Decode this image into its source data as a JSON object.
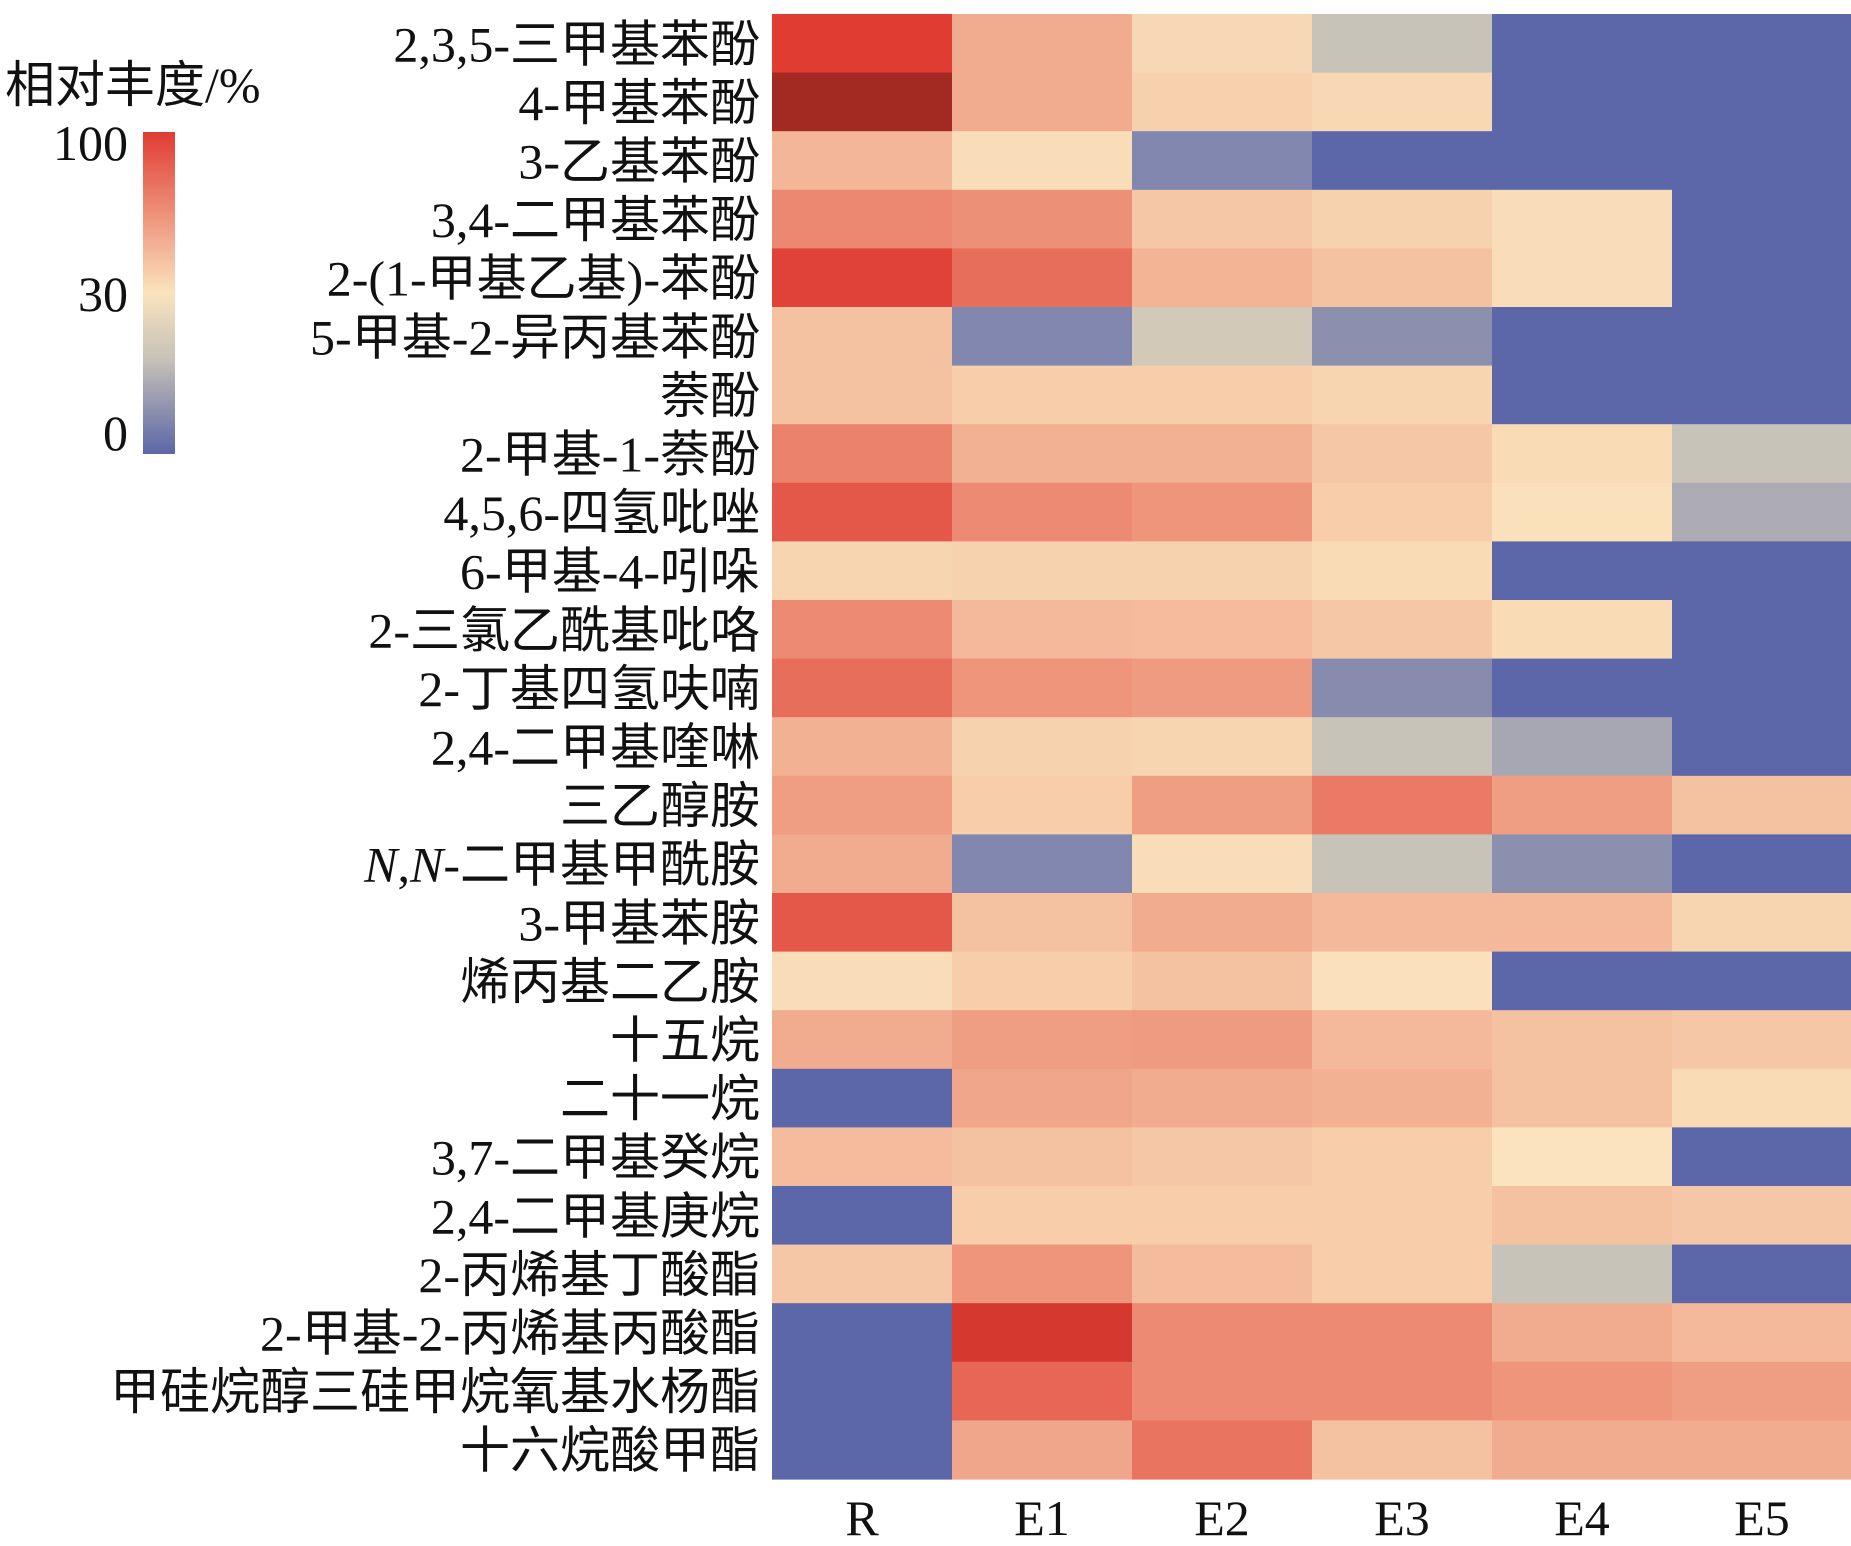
{
  "chart_data": {
    "type": "heatmap",
    "title": "",
    "xlabel": "",
    "ylabel": "",
    "columns": [
      "R",
      "E1",
      "E2",
      "E3",
      "E4",
      "E5"
    ],
    "rows": [
      {
        "label": "2,3,5-三甲基苯酚",
        "values": [
          90,
          50,
          34,
          20,
          0,
          0
        ]
      },
      {
        "label": "4-甲基苯酚",
        "values": [
          100,
          50,
          37,
          34,
          0,
          0
        ]
      },
      {
        "label": "3-乙基苯酚",
        "values": [
          46,
          32,
          7,
          0,
          0,
          0
        ]
      },
      {
        "label": "3,4-二甲基苯酚",
        "values": [
          63,
          60,
          40,
          36,
          32,
          0
        ]
      },
      {
        "label": "2-(1-甲基乙基)-苯酚",
        "values": [
          88,
          72,
          47,
          42,
          32,
          0
        ]
      },
      {
        "label": "5-甲基-2-异丙基苯酚",
        "values": [
          42,
          7,
          22,
          9,
          0,
          0
        ]
      },
      {
        "label": "萘酚",
        "values": [
          42,
          38,
          38,
          35,
          0,
          0
        ]
      },
      {
        "label": "2-甲基-1-萘酚",
        "values": [
          65,
          48,
          48,
          40,
          33,
          20
        ]
      },
      {
        "label": "4,5,6-四氢吡唑",
        "values": [
          80,
          62,
          58,
          38,
          31,
          15
        ]
      },
      {
        "label": "6-甲基-4-吲哚",
        "values": [
          35,
          36,
          36,
          33,
          0,
          0
        ]
      },
      {
        "label": "2-三氯乙酰基吡咯",
        "values": [
          62,
          45,
          44,
          40,
          33,
          0
        ]
      },
      {
        "label": "2-丁基四氢呋喃",
        "values": [
          72,
          58,
          56,
          8,
          0,
          0
        ]
      },
      {
        "label": "2,4-二甲基喹啉",
        "values": [
          48,
          36,
          35,
          20,
          14,
          0
        ]
      },
      {
        "label": "三乙醇胺",
        "values": [
          55,
          38,
          55,
          68,
          55,
          42
        ]
      },
      {
        "label": "N,N-二甲基甲酰胺",
        "values": [
          50,
          7,
          32,
          20,
          9,
          0
        ]
      },
      {
        "label": "3-甲基苯胺",
        "values": [
          80,
          42,
          50,
          45,
          45,
          35
        ]
      },
      {
        "label": "烯丙基二乙胺",
        "values": [
          32,
          38,
          42,
          31,
          0,
          0
        ]
      },
      {
        "label": "十五烷",
        "values": [
          50,
          55,
          56,
          45,
          42,
          40
        ]
      },
      {
        "label": "二十一烷",
        "values": [
          0,
          52,
          50,
          48,
          42,
          33
        ]
      },
      {
        "label": "3,7-二甲基癸烷",
        "values": [
          44,
          42,
          40,
          38,
          30,
          0
        ]
      },
      {
        "label": "2,4-二甲基庚烷",
        "values": [
          0,
          38,
          38,
          38,
          42,
          40
        ]
      },
      {
        "label": "2-丙烯基丁酸酯",
        "values": [
          40,
          58,
          44,
          38,
          20,
          0
        ]
      },
      {
        "label": "2-甲基-2-丙烯基丙酸酯",
        "values": [
          0,
          92,
          62,
          62,
          50,
          45
        ]
      },
      {
        "label": "甲硅烷醇三硅甲烷氧基水杨酯",
        "values": [
          0,
          75,
          62,
          62,
          58,
          55
        ]
      },
      {
        "label": "十六烷酸甲酯",
        "values": [
          0,
          52,
          70,
          42,
          50,
          50
        ]
      }
    ],
    "colorbar": {
      "title": "相对丰度/%",
      "ticks": [
        100,
        30,
        0
      ],
      "colors": {
        "low": "#5b67a8",
        "mid": "#fae3bd",
        "high": "#e03c32",
        "max": "#a32a22"
      }
    },
    "grid": false
  }
}
